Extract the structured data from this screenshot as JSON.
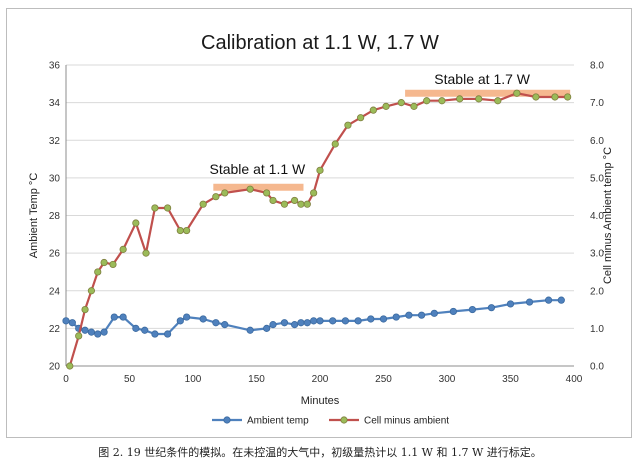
{
  "chart_data": {
    "type": "line",
    "title": "Calibration at 1.1 W, 1.7 W",
    "xlabel": "Minutes",
    "ylabel_left": "Ambient Temp °C",
    "ylabel_right": "Cell minus Ambient temp °C",
    "xlim": [
      0,
      400
    ],
    "ylim_left": [
      20,
      36
    ],
    "ylim_right": [
      0,
      8
    ],
    "x_ticks": [
      "0",
      "50",
      "100",
      "150",
      "200",
      "250",
      "300",
      "350",
      "400"
    ],
    "y_left_ticks": [
      "20",
      "22",
      "24",
      "26",
      "28",
      "30",
      "32",
      "34",
      "36"
    ],
    "y_right_ticks": [
      "0.0",
      "1.0",
      "2.0",
      "3.0",
      "4.0",
      "5.0",
      "6.0",
      "7.0",
      "8.0"
    ],
    "grid": "horizontal",
    "legend_position": "bottom",
    "series": [
      {
        "name": "Ambient temp",
        "axis": "left",
        "color": "#4f81bd",
        "points": [
          [
            0,
            22.4
          ],
          [
            5,
            22.3
          ],
          [
            10,
            22.0
          ],
          [
            15,
            21.9
          ],
          [
            20,
            21.8
          ],
          [
            25,
            21.7
          ],
          [
            30,
            21.8
          ],
          [
            38,
            22.6
          ],
          [
            45,
            22.6
          ],
          [
            55,
            22.0
          ],
          [
            62,
            21.9
          ],
          [
            70,
            21.7
          ],
          [
            80,
            21.7
          ],
          [
            90,
            22.4
          ],
          [
            95,
            22.6
          ],
          [
            108,
            22.5
          ],
          [
            118,
            22.3
          ],
          [
            125,
            22.2
          ],
          [
            145,
            21.9
          ],
          [
            158,
            22.0
          ],
          [
            163,
            22.2
          ],
          [
            172,
            22.3
          ],
          [
            180,
            22.2
          ],
          [
            185,
            22.3
          ],
          [
            190,
            22.3
          ],
          [
            195,
            22.4
          ],
          [
            200,
            22.4
          ],
          [
            210,
            22.4
          ],
          [
            220,
            22.4
          ],
          [
            230,
            22.4
          ],
          [
            240,
            22.5
          ],
          [
            250,
            22.5
          ],
          [
            260,
            22.6
          ],
          [
            270,
            22.7
          ],
          [
            280,
            22.7
          ],
          [
            290,
            22.8
          ],
          [
            305,
            22.9
          ],
          [
            320,
            23.0
          ],
          [
            335,
            23.1
          ],
          [
            350,
            23.3
          ],
          [
            365,
            23.4
          ],
          [
            380,
            23.5
          ],
          [
            390,
            23.5
          ]
        ]
      },
      {
        "name": "Cell minus ambient",
        "axis": "right",
        "color": "#c0504d",
        "marker_color": "#9bbb59",
        "points": [
          [
            3,
            0
          ],
          [
            10,
            0.8
          ],
          [
            15,
            1.5
          ],
          [
            20,
            2.0
          ],
          [
            25,
            2.5
          ],
          [
            30,
            2.75
          ],
          [
            37,
            2.7
          ],
          [
            45,
            3.1
          ],
          [
            55,
            3.8
          ],
          [
            63,
            3.0
          ],
          [
            70,
            4.2
          ],
          [
            80,
            4.2
          ],
          [
            90,
            3.6
          ],
          [
            95,
            3.6
          ],
          [
            108,
            4.3
          ],
          [
            118,
            4.5
          ],
          [
            125,
            4.6
          ],
          [
            145,
            4.7
          ],
          [
            158,
            4.6
          ],
          [
            163,
            4.4
          ],
          [
            172,
            4.3
          ],
          [
            180,
            4.4
          ],
          [
            185,
            4.3
          ],
          [
            190,
            4.3
          ],
          [
            195,
            4.6
          ],
          [
            200,
            5.2
          ],
          [
            212,
            5.9
          ],
          [
            222,
            6.4
          ],
          [
            232,
            6.6
          ],
          [
            242,
            6.8
          ],
          [
            252,
            6.9
          ],
          [
            264,
            7.0
          ],
          [
            274,
            6.9
          ],
          [
            284,
            7.05
          ],
          [
            296,
            7.05
          ],
          [
            310,
            7.1
          ],
          [
            325,
            7.1
          ],
          [
            340,
            7.05
          ],
          [
            355,
            7.25
          ],
          [
            370,
            7.15
          ],
          [
            385,
            7.15
          ],
          [
            395,
            7.15
          ]
        ]
      }
    ],
    "annotations": [
      {
        "text": "Stable at 1.1 W",
        "x_range": [
          116,
          187
        ],
        "y_right": 4.75,
        "label_x": 113,
        "label_y_right": 5.1
      },
      {
        "text": "Stable at 1.7 W",
        "x_range": [
          267,
          397
        ],
        "y_right": 7.25,
        "label_x": 290,
        "label_y_right": 7.5
      }
    ],
    "band_color": "#f4b183"
  },
  "caption": "图 2. 19 世纪条件的模拟。在未控温的大气中，初级量热计以 1.1 W 和 1.7 W 进行标定。"
}
